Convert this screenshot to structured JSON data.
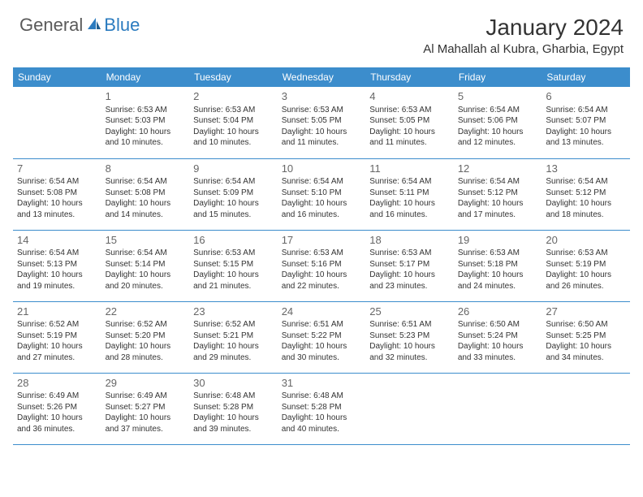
{
  "brand": {
    "part1": "General",
    "part2": "Blue"
  },
  "title": "January 2024",
  "location": "Al Mahallah al Kubra, Gharbia, Egypt",
  "colors": {
    "header_bg": "#3c8dcc",
    "header_text": "#ffffff",
    "row_border": "#3c8dcc",
    "logo_gray": "#5a5a5a",
    "logo_blue": "#2b7bbf",
    "text": "#333333",
    "daynum": "#666666",
    "page_bg": "#ffffff"
  },
  "weekdays": [
    "Sunday",
    "Monday",
    "Tuesday",
    "Wednesday",
    "Thursday",
    "Friday",
    "Saturday"
  ],
  "weeks": [
    [
      null,
      {
        "d": "1",
        "sr": "6:53 AM",
        "ss": "5:03 PM",
        "dl": "10 hours and 10 minutes."
      },
      {
        "d": "2",
        "sr": "6:53 AM",
        "ss": "5:04 PM",
        "dl": "10 hours and 10 minutes."
      },
      {
        "d": "3",
        "sr": "6:53 AM",
        "ss": "5:05 PM",
        "dl": "10 hours and 11 minutes."
      },
      {
        "d": "4",
        "sr": "6:53 AM",
        "ss": "5:05 PM",
        "dl": "10 hours and 11 minutes."
      },
      {
        "d": "5",
        "sr": "6:54 AM",
        "ss": "5:06 PM",
        "dl": "10 hours and 12 minutes."
      },
      {
        "d": "6",
        "sr": "6:54 AM",
        "ss": "5:07 PM",
        "dl": "10 hours and 13 minutes."
      }
    ],
    [
      {
        "d": "7",
        "sr": "6:54 AM",
        "ss": "5:08 PM",
        "dl": "10 hours and 13 minutes."
      },
      {
        "d": "8",
        "sr": "6:54 AM",
        "ss": "5:08 PM",
        "dl": "10 hours and 14 minutes."
      },
      {
        "d": "9",
        "sr": "6:54 AM",
        "ss": "5:09 PM",
        "dl": "10 hours and 15 minutes."
      },
      {
        "d": "10",
        "sr": "6:54 AM",
        "ss": "5:10 PM",
        "dl": "10 hours and 16 minutes."
      },
      {
        "d": "11",
        "sr": "6:54 AM",
        "ss": "5:11 PM",
        "dl": "10 hours and 16 minutes."
      },
      {
        "d": "12",
        "sr": "6:54 AM",
        "ss": "5:12 PM",
        "dl": "10 hours and 17 minutes."
      },
      {
        "d": "13",
        "sr": "6:54 AM",
        "ss": "5:12 PM",
        "dl": "10 hours and 18 minutes."
      }
    ],
    [
      {
        "d": "14",
        "sr": "6:54 AM",
        "ss": "5:13 PM",
        "dl": "10 hours and 19 minutes."
      },
      {
        "d": "15",
        "sr": "6:54 AM",
        "ss": "5:14 PM",
        "dl": "10 hours and 20 minutes."
      },
      {
        "d": "16",
        "sr": "6:53 AM",
        "ss": "5:15 PM",
        "dl": "10 hours and 21 minutes."
      },
      {
        "d": "17",
        "sr": "6:53 AM",
        "ss": "5:16 PM",
        "dl": "10 hours and 22 minutes."
      },
      {
        "d": "18",
        "sr": "6:53 AM",
        "ss": "5:17 PM",
        "dl": "10 hours and 23 minutes."
      },
      {
        "d": "19",
        "sr": "6:53 AM",
        "ss": "5:18 PM",
        "dl": "10 hours and 24 minutes."
      },
      {
        "d": "20",
        "sr": "6:53 AM",
        "ss": "5:19 PM",
        "dl": "10 hours and 26 minutes."
      }
    ],
    [
      {
        "d": "21",
        "sr": "6:52 AM",
        "ss": "5:19 PM",
        "dl": "10 hours and 27 minutes."
      },
      {
        "d": "22",
        "sr": "6:52 AM",
        "ss": "5:20 PM",
        "dl": "10 hours and 28 minutes."
      },
      {
        "d": "23",
        "sr": "6:52 AM",
        "ss": "5:21 PM",
        "dl": "10 hours and 29 minutes."
      },
      {
        "d": "24",
        "sr": "6:51 AM",
        "ss": "5:22 PM",
        "dl": "10 hours and 30 minutes."
      },
      {
        "d": "25",
        "sr": "6:51 AM",
        "ss": "5:23 PM",
        "dl": "10 hours and 32 minutes."
      },
      {
        "d": "26",
        "sr": "6:50 AM",
        "ss": "5:24 PM",
        "dl": "10 hours and 33 minutes."
      },
      {
        "d": "27",
        "sr": "6:50 AM",
        "ss": "5:25 PM",
        "dl": "10 hours and 34 minutes."
      }
    ],
    [
      {
        "d": "28",
        "sr": "6:49 AM",
        "ss": "5:26 PM",
        "dl": "10 hours and 36 minutes."
      },
      {
        "d": "29",
        "sr": "6:49 AM",
        "ss": "5:27 PM",
        "dl": "10 hours and 37 minutes."
      },
      {
        "d": "30",
        "sr": "6:48 AM",
        "ss": "5:28 PM",
        "dl": "10 hours and 39 minutes."
      },
      {
        "d": "31",
        "sr": "6:48 AM",
        "ss": "5:28 PM",
        "dl": "10 hours and 40 minutes."
      },
      null,
      null,
      null
    ]
  ],
  "labels": {
    "sunrise": "Sunrise:",
    "sunset": "Sunset:",
    "daylight": "Daylight:"
  }
}
